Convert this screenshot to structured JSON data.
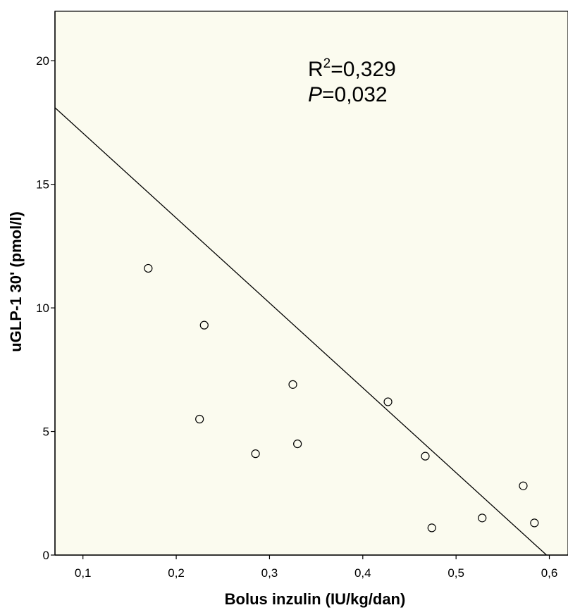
{
  "chart_data": {
    "type": "scatter",
    "title": "",
    "xlabel": "Bolus inzulin (IU/kg/dan)",
    "ylabel": "uGLP-1 30' (pmol/l)",
    "xlim": [
      0.07,
      0.62
    ],
    "ylim": [
      0,
      22
    ],
    "x_ticks": [
      {
        "value": 0.1,
        "label": "0,1"
      },
      {
        "value": 0.2,
        "label": "0,2"
      },
      {
        "value": 0.3,
        "label": "0,3"
      },
      {
        "value": 0.4,
        "label": "0,4"
      },
      {
        "value": 0.5,
        "label": "0,5"
      },
      {
        "value": 0.6,
        "label": "0,6"
      }
    ],
    "y_ticks": [
      {
        "value": 0,
        "label": "0"
      },
      {
        "value": 5,
        "label": "5"
      },
      {
        "value": 10,
        "label": "10"
      },
      {
        "value": 15,
        "label": "15"
      },
      {
        "value": 20,
        "label": "20"
      }
    ],
    "points": [
      {
        "x": 0.17,
        "y": 11.6
      },
      {
        "x": 0.23,
        "y": 9.3
      },
      {
        "x": 0.225,
        "y": 5.5
      },
      {
        "x": 0.285,
        "y": 4.1
      },
      {
        "x": 0.325,
        "y": 6.9
      },
      {
        "x": 0.33,
        "y": 4.5
      },
      {
        "x": 0.427,
        "y": 6.2
      },
      {
        "x": 0.467,
        "y": 4.0
      },
      {
        "x": 0.474,
        "y": 1.1
      },
      {
        "x": 0.528,
        "y": 1.5
      },
      {
        "x": 0.572,
        "y": 2.8
      },
      {
        "x": 0.584,
        "y": 1.3
      }
    ],
    "fit_line": {
      "x1": 0.07,
      "y1": 18.1,
      "x2": 0.597,
      "y2": 0.0
    },
    "annotation": {
      "r2_prefix": "R",
      "r2_superscript": "2",
      "r2_value": "=0,329",
      "p_label": "P",
      "p_value": "=0,032"
    },
    "grid": false,
    "legend": "none",
    "colors": {
      "plot_background": "#fbfbef",
      "marker_stroke": "#000000",
      "line": "#000000"
    }
  }
}
